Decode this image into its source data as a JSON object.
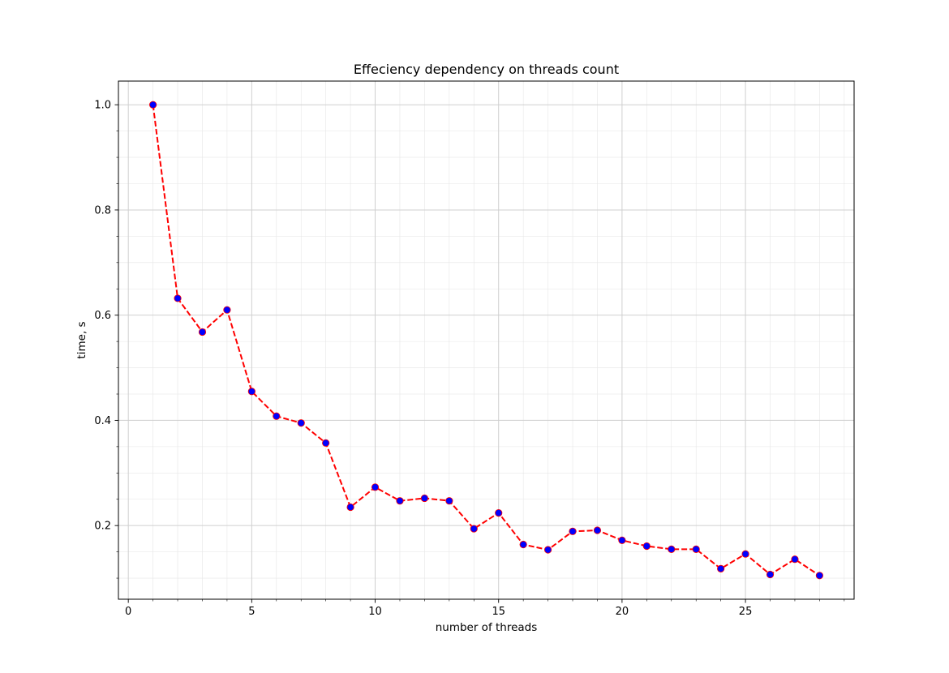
{
  "chart_data": {
    "type": "line",
    "title": "Effeciency dependency on threads count",
    "xlabel": "number of threads",
    "ylabel": "time, s",
    "xlim": [
      -0.4,
      29.4
    ],
    "ylim": [
      0.06,
      1.045
    ],
    "x_ticks": [
      0,
      5,
      10,
      15,
      20,
      25
    ],
    "y_ticks": [
      0.2,
      0.4,
      0.6,
      0.8,
      1.0
    ],
    "x_tick_labels": [
      "0",
      "5",
      "10",
      "15",
      "20",
      "25"
    ],
    "y_tick_labels": [
      "0.2",
      "0.4",
      "0.6",
      "0.8",
      "1.0"
    ],
    "grid": true,
    "minor_grid": true,
    "line_color": "#ff0000",
    "line_style": "dashed",
    "marker_color": "#0000ff",
    "series": [
      {
        "x": [
          1,
          2,
          3,
          4,
          5,
          6,
          7,
          8,
          9,
          10,
          11,
          12,
          13,
          14,
          15,
          16,
          17,
          18,
          19,
          20,
          21,
          22,
          23,
          24,
          25,
          26,
          27,
          28
        ],
        "values": [
          1.0,
          0.632,
          0.568,
          0.61,
          0.455,
          0.408,
          0.395,
          0.357,
          0.235,
          0.273,
          0.247,
          0.252,
          0.247,
          0.194,
          0.224,
          0.164,
          0.154,
          0.189,
          0.191,
          0.172,
          0.161,
          0.155,
          0.155,
          0.118,
          0.146,
          0.107,
          0.136,
          0.105
        ]
      }
    ]
  }
}
